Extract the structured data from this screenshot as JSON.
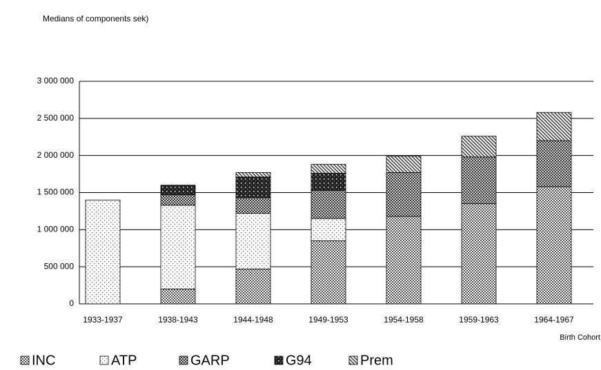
{
  "chart_data": {
    "type": "stacked_bar",
    "title": "Medians of components sek)",
    "x_label": "Birth Cohort",
    "categories": [
      "1933-1937",
      "1938-1943",
      "1944-1948",
      "1949-1953",
      "1954-1958",
      "1959-1963",
      "1964-1967"
    ],
    "series": [
      {
        "name": "INC",
        "color": "#555555",
        "values": [
          0,
          200000,
          470000,
          850000,
          1180000,
          1350000,
          1580000
        ]
      },
      {
        "name": "ATP",
        "color": "#666666",
        "values": [
          1400000,
          1130000,
          750000,
          300000,
          0,
          0,
          0
        ]
      },
      {
        "name": "GARP",
        "color": "#333333",
        "values": [
          0,
          140000,
          210000,
          380000,
          590000,
          630000,
          620000
        ]
      },
      {
        "name": "G94",
        "color": "#222222",
        "values": [
          0,
          130000,
          280000,
          230000,
          0,
          0,
          0
        ]
      },
      {
        "name": "Prem",
        "color": "#444444",
        "values": [
          0,
          0,
          60000,
          120000,
          220000,
          280000,
          380000
        ]
      }
    ],
    "ylim": [
      0,
      3000000
    ],
    "yticks": [
      0,
      {
        "value": 500000,
        "label": "500 000"
      },
      {
        "value": 1000000,
        "label": "1 000 000"
      },
      {
        "value": 1500000,
        "label": "1 500 000"
      },
      {
        "value": 2000000,
        "label": "2 000 000"
      },
      {
        "value": 2500000,
        "label": "2 500 000"
      },
      {
        "value": 3000000,
        "label": "3 000 000"
      }
    ],
    "grid": true
  }
}
